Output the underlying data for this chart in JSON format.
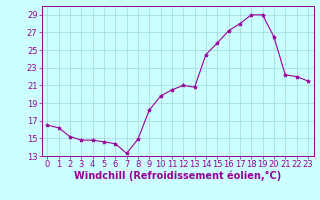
{
  "x": [
    0,
    1,
    2,
    3,
    4,
    5,
    6,
    7,
    8,
    9,
    10,
    11,
    12,
    13,
    14,
    15,
    16,
    17,
    18,
    19,
    20,
    21,
    22,
    23
  ],
  "y": [
    16.5,
    16.2,
    15.2,
    14.8,
    14.8,
    14.6,
    14.4,
    13.3,
    14.9,
    18.2,
    19.8,
    20.5,
    21.0,
    20.8,
    24.5,
    25.8,
    27.2,
    28.0,
    29.0,
    29.0,
    26.5,
    22.2,
    22.0,
    21.5
  ],
  "line_color": "#990099",
  "marker": "*",
  "marker_size": 3,
  "bg_color": "#ccffff",
  "grid_color": "#aadddd",
  "xlabel": "Windchill (Refroidissement éolien,°C)",
  "xlabel_color": "#990099",
  "ylim": [
    13,
    30
  ],
  "yticks": [
    13,
    15,
    17,
    19,
    21,
    23,
    25,
    27,
    29
  ],
  "xticks": [
    0,
    1,
    2,
    3,
    4,
    5,
    6,
    7,
    8,
    9,
    10,
    11,
    12,
    13,
    14,
    15,
    16,
    17,
    18,
    19,
    20,
    21,
    22,
    23
  ],
  "tick_fontsize": 6,
  "xlabel_fontsize": 7
}
